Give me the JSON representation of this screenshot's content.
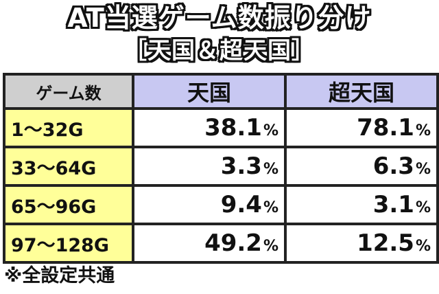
{
  "title": {
    "line1": "AT当選ゲーム数振り分け",
    "line2": "［天国＆超天国］"
  },
  "table": {
    "corner_header": "ゲーム数",
    "columns": [
      "天国",
      "超天国"
    ],
    "rows": [
      {
        "label": "1〜32G",
        "values": [
          "38.1",
          "78.1"
        ]
      },
      {
        "label": "33〜64G",
        "values": [
          "3.3",
          "6.3"
        ]
      },
      {
        "label": "65〜96G",
        "values": [
          "9.4",
          "3.1"
        ]
      },
      {
        "label": "97〜128G",
        "values": [
          "49.2",
          "12.5"
        ]
      }
    ],
    "unit": "%"
  },
  "footnote": "※全設定共通",
  "colors": {
    "corner_header_bg": "#cfcfcf",
    "column_header_bg": "#c8c8f2",
    "row_header_bg": "#ffff99",
    "border": "#222222"
  }
}
